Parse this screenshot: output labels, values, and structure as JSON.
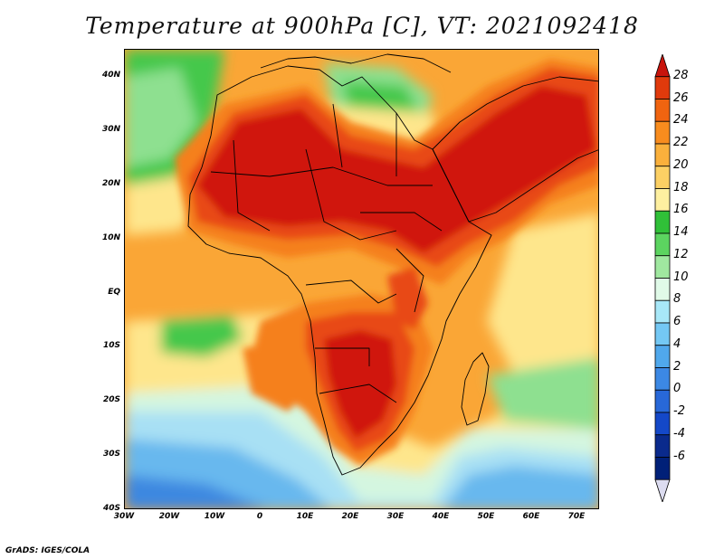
{
  "title": "Temperature at 900hPa [C], VT: 2021092418",
  "footer": "GrADS: IGES/COLA",
  "map": {
    "lat_labels": [
      "40N",
      "30N",
      "20N",
      "10N",
      "EQ",
      "10S",
      "20S",
      "30S",
      "40S"
    ],
    "lon_labels": [
      "30W",
      "20W",
      "10W",
      "0",
      "10E",
      "20E",
      "30E",
      "40E",
      "50E",
      "60E",
      "70E"
    ]
  },
  "colorbar": {
    "labels": [
      "28",
      "26",
      "24",
      "22",
      "20",
      "18",
      "16",
      "14",
      "12",
      "10",
      "8",
      "6",
      "4",
      "2",
      "0",
      "-2",
      "-4",
      "-6"
    ],
    "colors": [
      "#c8140c",
      "#e03a0c",
      "#f06410",
      "#f88c1e",
      "#fab03c",
      "#fcd064",
      "#fef0a0",
      "#30c038",
      "#5cd460",
      "#a0e8a0",
      "#e0fae8",
      "#a8e8f8",
      "#74c8f4",
      "#50a8ec",
      "#3c88e4",
      "#2868d8",
      "#1448c8",
      "#0a2a8c",
      "#002078",
      "#dcdcf0"
    ]
  },
  "field_colors": {
    "very_hot": "#d0180c",
    "hot": "#e84812",
    "warm": "#f5801a",
    "mild": "#faa636",
    "cool_warm": "#fcc85a",
    "pale": "#fee68c",
    "green": "#44c84c",
    "light_green": "#8ee090",
    "mint": "#d4f6e0",
    "light_blue": "#a8e0f4",
    "blue": "#68b8ee",
    "deep_blue": "#3c88e0"
  }
}
